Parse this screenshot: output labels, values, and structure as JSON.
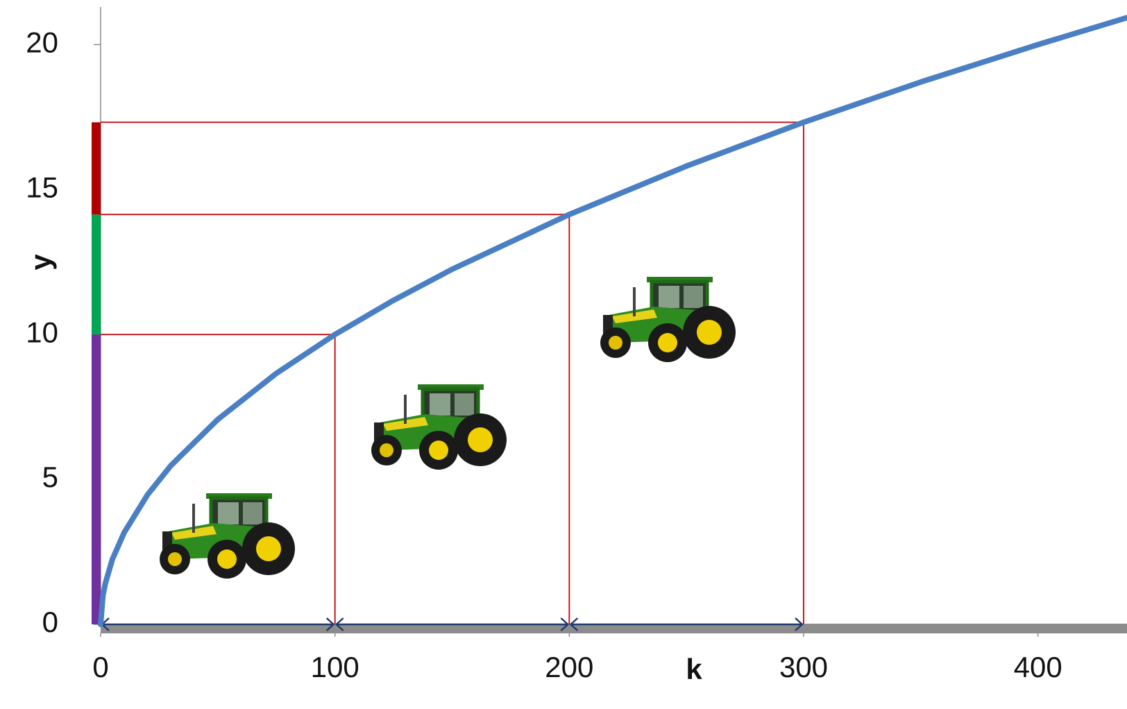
{
  "chart_data": {
    "type": "line",
    "x_label": "k",
    "y_label": "y",
    "x": [
      0,
      1,
      2,
      5,
      10,
      20,
      30,
      50,
      75,
      100,
      125,
      150,
      200,
      250,
      300,
      350,
      400,
      438
    ],
    "values": [
      0,
      1,
      1.41,
      2.24,
      3.16,
      4.47,
      5.48,
      7.07,
      8.66,
      10,
      11.18,
      12.25,
      14.14,
      15.81,
      17.32,
      18.71,
      20,
      20.93
    ],
    "color": "#4a7fc4",
    "markers": {
      "x": [
        100,
        200,
        300
      ],
      "y": [
        10,
        14.14,
        17.32
      ],
      "color": "#c8191e"
    },
    "y_segment_colors": [
      "#7030a0",
      "#00a651",
      "#b00000"
    ],
    "arrow_color": "#1f3a6e",
    "xlim": [
      0,
      438
    ],
    "ylim": [
      0,
      21.3
    ],
    "xticks": [
      0,
      100,
      200,
      300,
      400
    ],
    "yticks": [
      0,
      5,
      10,
      15,
      20
    ]
  }
}
